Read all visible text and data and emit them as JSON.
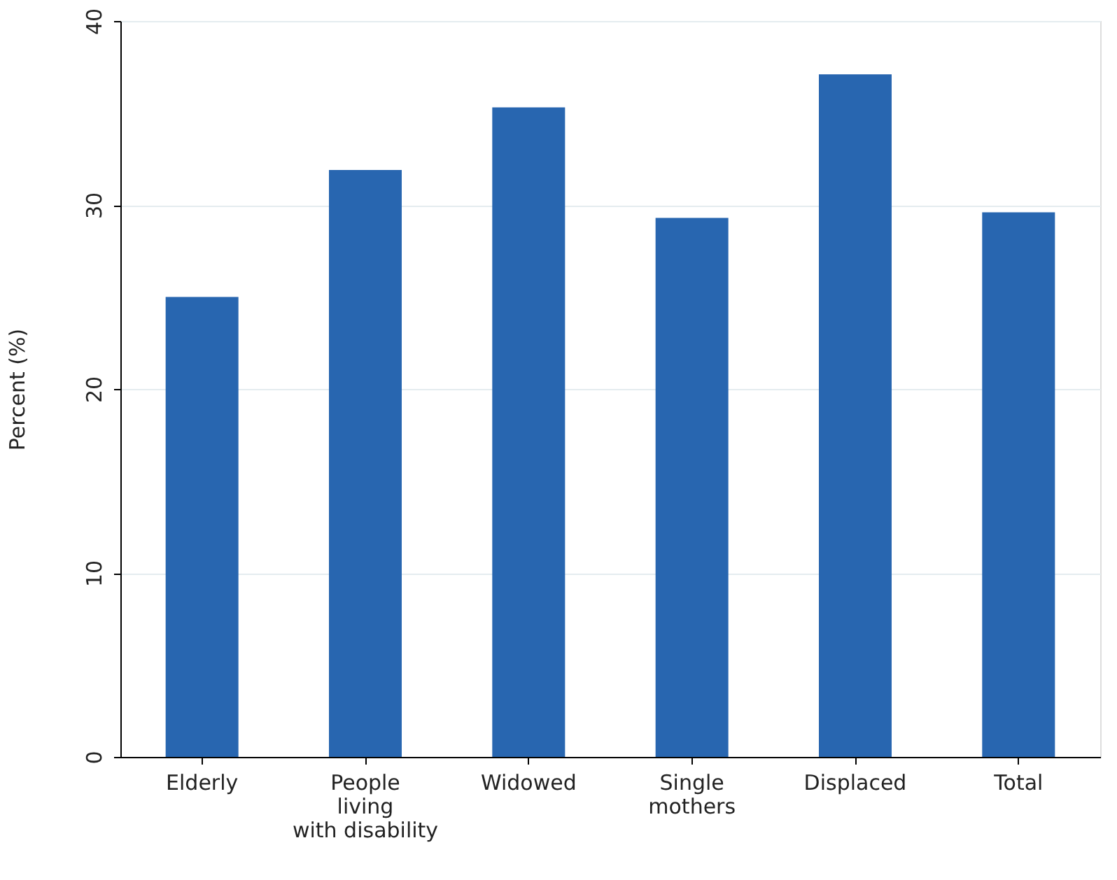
{
  "chart_data": {
    "type": "bar",
    "ylabel": "Percent (%)",
    "categories": [
      "Elderly",
      "People\nliving\nwith disability",
      "Widowed",
      "Single\nmothers",
      "Displaced",
      "Total"
    ],
    "values": [
      25.0,
      31.9,
      35.3,
      29.3,
      37.1,
      29.6
    ],
    "color": "#2866b0",
    "ylim": [
      0,
      40
    ],
    "yticks": [
      0,
      10,
      20,
      30,
      40
    ],
    "grid": "y"
  }
}
